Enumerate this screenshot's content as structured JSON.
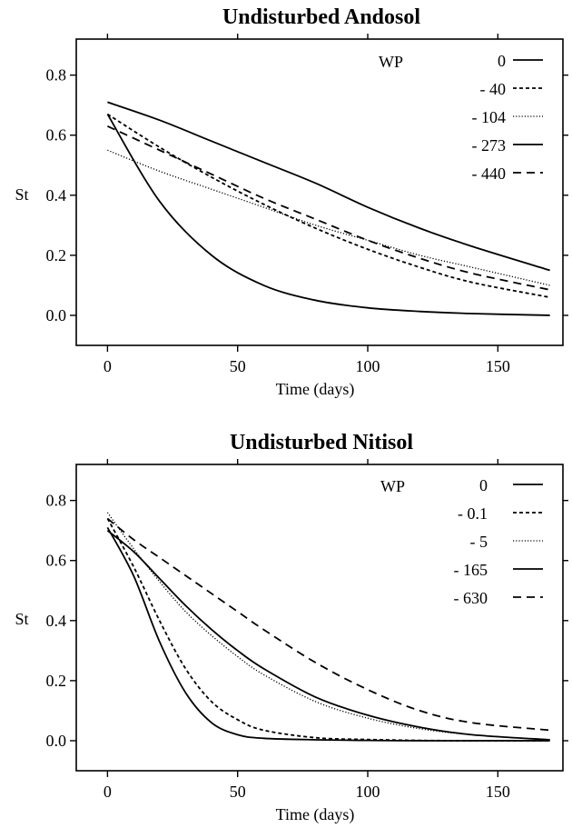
{
  "chart_data": [
    {
      "type": "line",
      "title": "Undisturbed Andosol",
      "xlabel": "Time (days)",
      "ylabel": "St",
      "xlim": [
        -12,
        175
      ],
      "ylim": [
        -0.1,
        0.92
      ],
      "xticks": [
        "0",
        "50",
        "100",
        "150"
      ],
      "yticks": [
        "0.0",
        "0.2",
        "0.4",
        "0.6",
        "0.8"
      ],
      "legend_header": "WP",
      "legend_position": "top-right",
      "x": [
        0,
        20,
        40,
        60,
        80,
        100,
        120,
        140,
        170
      ],
      "series": [
        {
          "name": "0",
          "dash": "solid",
          "values": [
            0.67,
            0.38,
            0.2,
            0.1,
            0.05,
            0.025,
            0.013,
            0.006,
            0.0
          ]
        },
        {
          "name": "- 40",
          "dash": "dashed",
          "values": [
            0.67,
            0.56,
            0.46,
            0.37,
            0.29,
            0.22,
            0.16,
            0.11,
            0.06
          ]
        },
        {
          "name": "- 104",
          "dash": "dotted",
          "values": [
            0.55,
            0.48,
            0.42,
            0.36,
            0.3,
            0.25,
            0.2,
            0.16,
            0.1
          ]
        },
        {
          "name": "- 273",
          "dash": "solid",
          "values": [
            0.71,
            0.65,
            0.58,
            0.51,
            0.44,
            0.36,
            0.29,
            0.23,
            0.15
          ]
        },
        {
          "name": "- 440",
          "dash": "longdash",
          "values": [
            0.63,
            0.55,
            0.47,
            0.39,
            0.32,
            0.25,
            0.19,
            0.14,
            0.085
          ]
        }
      ]
    },
    {
      "type": "line",
      "title": "Undisturbed Nitisol",
      "xlabel": "Time (days)",
      "ylabel": "St",
      "xlim": [
        -12,
        175
      ],
      "ylim": [
        -0.1,
        0.92
      ],
      "xticks": [
        "0",
        "50",
        "100",
        "150"
      ],
      "yticks": [
        "0.0",
        "0.2",
        "0.4",
        "0.6",
        "0.8"
      ],
      "legend_header": "WP",
      "legend_position": "top-right",
      "x": [
        0,
        10,
        20,
        30,
        40,
        50,
        60,
        80,
        100,
        120,
        140,
        170
      ],
      "series": [
        {
          "name": "0",
          "dash": "solid",
          "values": [
            0.71,
            0.55,
            0.33,
            0.16,
            0.06,
            0.02,
            0.008,
            0.003,
            0.001,
            0.0,
            0.0,
            0.0
          ]
        },
        {
          "name": "- 0.1",
          "dash": "dashed",
          "values": [
            0.74,
            0.58,
            0.4,
            0.24,
            0.13,
            0.07,
            0.035,
            0.01,
            0.004,
            0.001,
            0.0,
            0.0
          ]
        },
        {
          "name": "- 5",
          "dash": "dotted",
          "values": [
            0.76,
            0.64,
            0.53,
            0.43,
            0.35,
            0.28,
            0.22,
            0.13,
            0.075,
            0.04,
            0.02,
            0.003
          ]
        },
        {
          "name": "- 165",
          "dash": "solid",
          "values": [
            0.7,
            0.63,
            0.54,
            0.45,
            0.37,
            0.3,
            0.24,
            0.145,
            0.085,
            0.045,
            0.02,
            0.003
          ]
        },
        {
          "name": "- 630",
          "dash": "longdash",
          "values": [
            0.74,
            0.67,
            0.61,
            0.55,
            0.49,
            0.43,
            0.37,
            0.26,
            0.17,
            0.1,
            0.06,
            0.035
          ]
        }
      ]
    }
  ]
}
